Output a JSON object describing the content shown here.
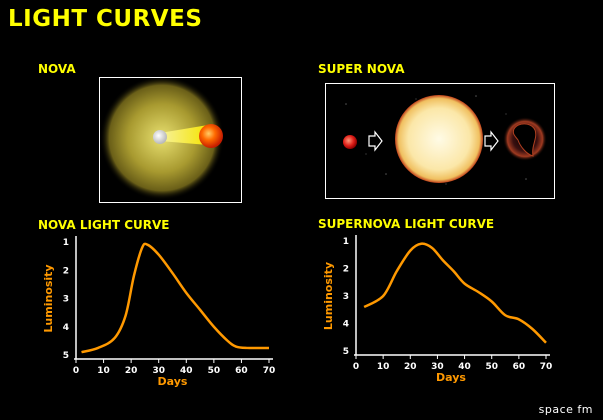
{
  "title": "LIGHT CURVES",
  "nova": {
    "label": "NOVA"
  },
  "supernova": {
    "label": "SUPER NOVA"
  },
  "credit": "space fm",
  "colors": {
    "title": "#ffff00",
    "curve": "#ff9900",
    "axis": "#ffffff"
  },
  "icons": [
    "white-dwarf-icon",
    "red-star-icon",
    "giant-star-icon",
    "remnant-icon",
    "arrow-icon"
  ],
  "chart_data": [
    {
      "type": "line",
      "title": "NOVA LIGHT CURVE",
      "xlabel": "Days",
      "ylabel": "Luminosity",
      "xlim": [
        0,
        70
      ],
      "ylim": [
        1,
        5
      ],
      "y_inverted": true,
      "xticks": [
        0,
        10,
        20,
        30,
        40,
        50,
        60,
        70
      ],
      "yticks": [
        1,
        2,
        3,
        4,
        5
      ],
      "grid": false,
      "x": [
        2,
        8,
        14,
        18,
        21,
        24,
        26,
        30,
        35,
        40,
        45,
        50,
        55,
        58,
        62,
        70
      ],
      "y": [
        4.9,
        4.75,
        4.4,
        3.6,
        2.2,
        1.2,
        1.1,
        1.45,
        2.1,
        2.8,
        3.4,
        4.0,
        4.5,
        4.7,
        4.75,
        4.75
      ]
    },
    {
      "type": "line",
      "title": "SUPERNOVA LIGHT CURVE",
      "xlabel": "Days",
      "ylabel": "Luminosity",
      "xlim": [
        0,
        70
      ],
      "ylim": [
        1,
        5
      ],
      "y_inverted": true,
      "xticks": [
        0,
        10,
        20,
        30,
        40,
        50,
        60,
        70
      ],
      "yticks": [
        1,
        2,
        3,
        4,
        5
      ],
      "grid": false,
      "x": [
        3,
        10,
        15,
        20,
        24,
        28,
        32,
        36,
        40,
        45,
        50,
        55,
        60,
        65,
        70
      ],
      "y": [
        3.4,
        3.0,
        2.1,
        1.35,
        1.1,
        1.25,
        1.7,
        2.1,
        2.55,
        2.85,
        3.2,
        3.7,
        3.85,
        4.2,
        4.7
      ]
    }
  ]
}
